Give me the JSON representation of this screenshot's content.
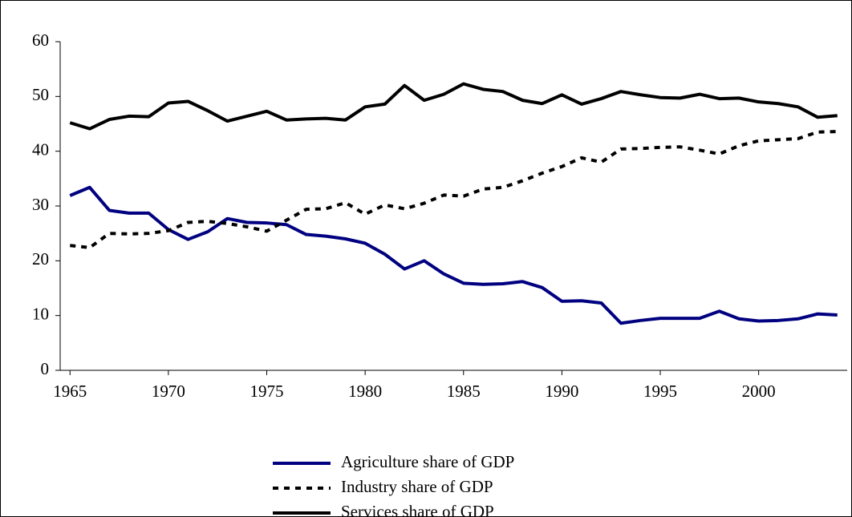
{
  "chart_data": {
    "type": "line",
    "x": [
      1965,
      1966,
      1967,
      1968,
      1969,
      1970,
      1971,
      1972,
      1973,
      1974,
      1975,
      1976,
      1977,
      1978,
      1979,
      1980,
      1981,
      1982,
      1983,
      1984,
      1985,
      1986,
      1987,
      1988,
      1989,
      1990,
      1991,
      1992,
      1993,
      1994,
      1995,
      1996,
      1997,
      1998,
      1999,
      2000,
      2001,
      2002,
      2003,
      2004
    ],
    "series": [
      {
        "name": "Agriculture share of GDP",
        "color": "#000080",
        "dash": "none",
        "values": [
          31.9,
          33.4,
          29.2,
          28.7,
          28.7,
          25.7,
          23.9,
          25.3,
          27.7,
          27.0,
          26.9,
          26.6,
          24.8,
          24.5,
          24.0,
          23.2,
          21.2,
          18.5,
          20.0,
          17.6,
          15.9,
          15.7,
          15.8,
          16.2,
          15.1,
          12.6,
          12.7,
          12.3,
          8.6,
          9.1,
          9.5,
          9.5,
          9.5,
          10.8,
          9.4,
          9.0,
          9.1,
          9.4,
          10.3,
          10.1
        ]
      },
      {
        "name": "Industry share of GDP",
        "color": "#000000",
        "dash": "7,7",
        "values": [
          22.8,
          22.4,
          25.0,
          24.9,
          25.0,
          25.5,
          27.0,
          27.2,
          26.8,
          26.2,
          25.4,
          27.4,
          29.4,
          29.5,
          30.6,
          28.5,
          30.2,
          29.5,
          30.5,
          32.0,
          31.8,
          33.1,
          33.4,
          34.6,
          36.0,
          37.2,
          38.8,
          38.0,
          40.4,
          40.5,
          40.7,
          40.8,
          40.2,
          39.5,
          41.0,
          41.9,
          42.1,
          42.3,
          43.5,
          43.6
        ]
      },
      {
        "name": "Services share of GDP",
        "color": "#000000",
        "dash": "none",
        "values": [
          45.2,
          44.1,
          45.8,
          46.4,
          46.3,
          48.8,
          49.1,
          47.4,
          45.5,
          46.4,
          47.3,
          45.7,
          45.9,
          46.0,
          45.7,
          48.1,
          48.6,
          52.0,
          49.3,
          50.4,
          52.3,
          51.3,
          50.9,
          49.3,
          48.7,
          50.3,
          48.6,
          49.6,
          50.9,
          50.3,
          49.8,
          49.7,
          50.4,
          49.6,
          49.7,
          49.0,
          48.7,
          48.1,
          46.2,
          46.5
        ]
      }
    ],
    "xlim": [
      1964.5,
      2004.5
    ],
    "xticks": [
      1965,
      1970,
      1975,
      1980,
      1985,
      1990,
      1995,
      2000
    ],
    "ylim": [
      0,
      60
    ],
    "yticks": [
      0,
      10,
      20,
      30,
      40,
      50,
      60
    ],
    "grid": false
  }
}
